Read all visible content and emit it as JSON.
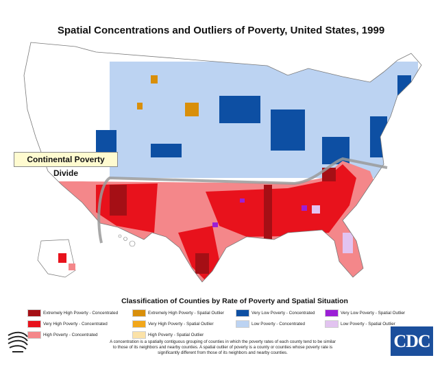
{
  "title": "Spatial Concentrations and Outliers of Poverty, United States, 1999",
  "map": {
    "divider_label": "Continental Poverty Divide",
    "colors": {
      "extremely_high_conc": "#a50f15",
      "very_high_conc": "#e8121c",
      "high_conc": "#f4878a",
      "eh_outlier": "#d98f0a",
      "vh_outlier": "#f2a71a",
      "h_outlier": "#fbe2a8",
      "very_low_conc": "#0d4fa3",
      "low_conc": "#bcd3f2",
      "very_low_outlier": "#9b1fd6",
      "low_outlier": "#e2c3f0",
      "no_pattern": "#ffffff"
    }
  },
  "legend": {
    "title": "Classification of Counties by Rate of Poverty and Spatial Situation",
    "items": [
      {
        "label": "Extremely High Poverty - Concentrated",
        "color": "#a50f15"
      },
      {
        "label": "Very High Poverty - Concentrated",
        "color": "#e8121c"
      },
      {
        "label": "High Poverty - Concentrated",
        "color": "#f4878a"
      },
      {
        "label": "Extremely High Poverty - Spatial Outlier",
        "color": "#d98f0a"
      },
      {
        "label": "Very High Poverty - Spatial Outlier",
        "color": "#f2a71a"
      },
      {
        "label": "High Poverty - Spatial Outlier",
        "color": "#fbe2a8"
      },
      {
        "label": "Very Low Poverty - Concentrated",
        "color": "#0d4fa3"
      },
      {
        "label": "Low Poverty - Concentrated",
        "color": "#bcd3f2"
      },
      {
        "label": "Very Low Poverty - Spatial Outlier",
        "color": "#9b1fd6"
      },
      {
        "label": "Low Poverty - Spatial Outlier",
        "color": "#e2c3f0"
      }
    ]
  },
  "footnote": "A concentration is a spatially contiguous grouping of counties in which the poverty rates of each county tend to be similar to those of its neighbors and nearby counties.  A spatial outlier of poverty is a county or counties whose poverty rate is significantly different from those of its neighbors and nearby counties.",
  "logos": {
    "cdc": "CDC",
    "hhs": "HHS eagle seal"
  }
}
